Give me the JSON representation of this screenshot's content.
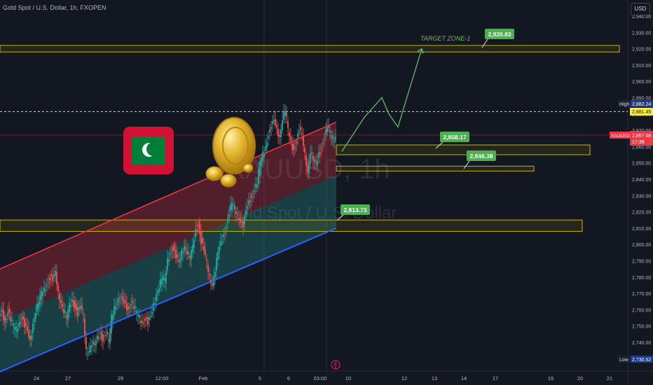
{
  "header": {
    "symbol_title": "Gold Spot / U.S. Dollar, 1h, FXOPEN",
    "currency_button": "USD"
  },
  "watermark": {
    "symbol": "XAUUSD, 1h",
    "description": "Gold Spot / U.S. Dollar"
  },
  "annotations": {
    "target_zone": "TARGET ZONE-1",
    "labels": [
      "2,920.83",
      "2,858.17",
      "2,846.38",
      "2,813.73"
    ]
  },
  "price_scale": {
    "ticks": [
      "2,940.00",
      "2,930.00",
      "2,920.00",
      "2,910.00",
      "2,900.00",
      "2,890.00",
      "2,880.00",
      "2,870.00",
      "2,860.00",
      "2,850.00",
      "2,840.00",
      "2,830.00",
      "2,820.00",
      "2,810.00",
      "2,800.00",
      "2,790.00",
      "2,780.00",
      "2,770.00",
      "2,760.00",
      "2,750.00",
      "2,740.00"
    ],
    "tick_values": [
      2940,
      2930,
      2920,
      2910,
      2900,
      2890,
      2880,
      2870,
      2860,
      2850,
      2840,
      2830,
      2820,
      2810,
      2800,
      2790,
      2780,
      2770,
      2760,
      2750,
      2740
    ],
    "high_label": "High",
    "high_value": "2,882.24",
    "dashed_level": "2,881.45",
    "symbol_tag": "XAUUSD",
    "last_price": "2,867.08",
    "countdown": "17:39",
    "low_label": "Low",
    "low_value": "2,730.52"
  },
  "time_axis": {
    "labels": [
      "24",
      "27",
      "29",
      "12:00",
      "Feb",
      "5",
      "6",
      "03:00",
      "10",
      "12",
      "13",
      "14",
      "17",
      "19",
      "20",
      "21"
    ]
  },
  "colors": {
    "background": "#131722",
    "bull": "#26a69a",
    "bear": "#ef5350",
    "zone_border": "#c8b400",
    "label_green": "#4caf50",
    "projection": "#66bb6a",
    "support_line": "#2962ff",
    "resistance_line": "#f23645"
  },
  "chart_data": {
    "type": "candlestick",
    "symbol": "XAUUSD",
    "timeframe": "1h",
    "ylim": [
      2725,
      2945
    ],
    "close_path": [
      [
        0,
        2755
      ],
      [
        4,
        2758
      ],
      [
        8,
        2752
      ],
      [
        12,
        2760
      ],
      [
        16,
        2754
      ],
      [
        20,
        2750
      ],
      [
        24,
        2748
      ],
      [
        28,
        2752
      ],
      [
        32,
        2756
      ],
      [
        36,
        2750
      ],
      [
        40,
        2746
      ],
      [
        44,
        2740
      ],
      [
        48,
        2752
      ],
      [
        52,
        2760
      ],
      [
        56,
        2765
      ],
      [
        60,
        2770
      ],
      [
        64,
        2772
      ],
      [
        68,
        2776
      ],
      [
        72,
        2780
      ],
      [
        76,
        2778
      ],
      [
        80,
        2782
      ],
      [
        84,
        2770
      ],
      [
        88,
        2765
      ],
      [
        92,
        2760
      ],
      [
        96,
        2755
      ],
      [
        100,
        2762
      ],
      [
        104,
        2765
      ],
      [
        108,
        2762
      ],
      [
        112,
        2758
      ],
      [
        116,
        2762
      ],
      [
        120,
        2755
      ],
      [
        124,
        2735
      ],
      [
        128,
        2736
      ],
      [
        132,
        2740
      ],
      [
        136,
        2738
      ],
      [
        140,
        2742
      ],
      [
        144,
        2745
      ],
      [
        148,
        2742
      ],
      [
        152,
        2746
      ],
      [
        156,
        2740
      ],
      [
        160,
        2755
      ],
      [
        164,
        2762
      ],
      [
        168,
        2765
      ],
      [
        172,
        2768
      ],
      [
        176,
        2765
      ],
      [
        180,
        2762
      ],
      [
        184,
        2760
      ],
      [
        188,
        2765
      ],
      [
        192,
        2762
      ],
      [
        196,
        2758
      ],
      [
        200,
        2755
      ],
      [
        204,
        2752
      ],
      [
        208,
        2755
      ],
      [
        212,
        2752
      ],
      [
        216,
        2755
      ],
      [
        220,
        2762
      ],
      [
        224,
        2770
      ],
      [
        228,
        2775
      ],
      [
        232,
        2780
      ],
      [
        236,
        2778
      ],
      [
        240,
        2790
      ],
      [
        244,
        2795
      ],
      [
        248,
        2798
      ],
      [
        252,
        2792
      ],
      [
        256,
        2788
      ],
      [
        260,
        2795
      ],
      [
        264,
        2800
      ],
      [
        268,
        2796
      ],
      [
        272,
        2792
      ],
      [
        276,
        2798
      ],
      [
        280,
        2808
      ],
      [
        284,
        2812
      ],
      [
        288,
        2802
      ],
      [
        292,
        2796
      ],
      [
        296,
        2788
      ],
      [
        300,
        2780
      ],
      [
        304,
        2776
      ],
      [
        308,
        2785
      ],
      [
        312,
        2795
      ],
      [
        316,
        2800
      ],
      [
        320,
        2805
      ],
      [
        324,
        2812
      ],
      [
        328,
        2820
      ],
      [
        332,
        2825
      ],
      [
        336,
        2822
      ],
      [
        340,
        2818
      ],
      [
        344,
        2815
      ],
      [
        348,
        2812
      ],
      [
        352,
        2820
      ],
      [
        356,
        2825
      ],
      [
        360,
        2830
      ],
      [
        364,
        2835
      ],
      [
        368,
        2838
      ],
      [
        372,
        2850
      ],
      [
        376,
        2855
      ],
      [
        380,
        2860
      ],
      [
        384,
        2868
      ],
      [
        388,
        2872
      ],
      [
        392,
        2875
      ],
      [
        396,
        2870
      ],
      [
        400,
        2866
      ],
      [
        404,
        2878
      ],
      [
        408,
        2883
      ],
      [
        412,
        2870
      ],
      [
        416,
        2862
      ],
      [
        420,
        2858
      ],
      [
        424,
        2864
      ],
      [
        428,
        2870
      ],
      [
        432,
        2866
      ],
      [
        436,
        2855
      ],
      [
        440,
        2845
      ],
      [
        444,
        2858
      ],
      [
        448,
        2852
      ],
      [
        452,
        2848
      ],
      [
        456,
        2855
      ],
      [
        460,
        2860
      ],
      [
        464,
        2866
      ],
      [
        468,
        2872
      ],
      [
        472,
        2868
      ],
      [
        476,
        2865
      ],
      [
        480,
        2867
      ]
    ],
    "lines": {
      "upper_channel": [
        [
          0,
          2785
        ],
        [
          480,
          2875
        ]
      ],
      "lower_channel": [
        [
          0,
          2722
        ],
        [
          480,
          2810
        ]
      ]
    },
    "horizontal_zones": [
      {
        "from_x": 0,
        "to_x": 884,
        "low": 2918,
        "high": 2922
      },
      {
        "from_x": 480,
        "to_x": 842,
        "low": 2855,
        "high": 2861
      },
      {
        "from_x": 480,
        "to_x": 762,
        "low": 2845,
        "high": 2848
      },
      {
        "from_x": 0,
        "to_x": 831,
        "low": 2808,
        "high": 2815
      }
    ],
    "projection_path": [
      [
        488,
        2857
      ],
      [
        520,
        2878
      ],
      [
        545,
        2890
      ],
      [
        555,
        2880
      ],
      [
        568,
        2872
      ],
      [
        602,
        2920
      ]
    ],
    "dashed_level_value": 2881.45,
    "last_price_value": 2867.08,
    "high_value": 2882.24,
    "low_value": 2730.52,
    "label_values": [
      2920.83,
      2858.17,
      2846.38,
      2813.73
    ]
  }
}
